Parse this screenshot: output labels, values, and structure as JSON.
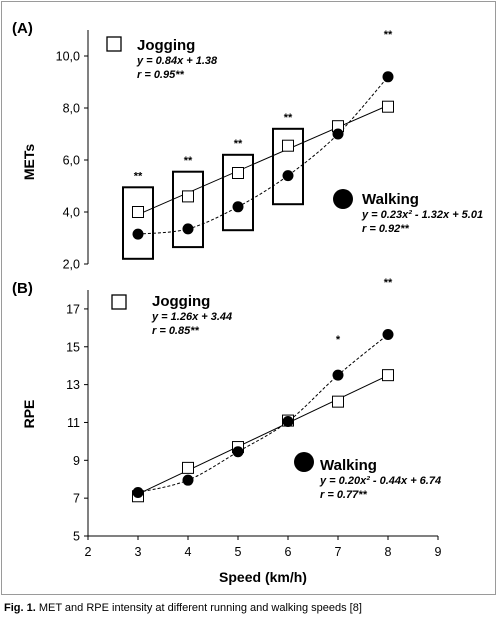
{
  "chart_data": [
    {
      "type": "scatter",
      "panel_label": "(A)",
      "ylabel": "METs",
      "xlim": [
        2,
        9
      ],
      "ylim": [
        2,
        11
      ],
      "y_ticks": [
        "2,0",
        "4,0",
        "6,0",
        "8,0",
        "10,0"
      ],
      "y_tick_values": [
        2,
        4,
        6,
        8,
        10
      ],
      "series": [
        {
          "name": "Jogging",
          "marker": "open-square",
          "fit": "solid-line",
          "x": [
            3,
            4,
            5,
            6,
            7,
            8
          ],
          "y": [
            4.0,
            4.6,
            5.5,
            6.55,
            7.3,
            8.05
          ]
        },
        {
          "name": "Walking",
          "marker": "filled-circle",
          "fit": "dashed-curve",
          "x": [
            3,
            4,
            5,
            6,
            7,
            8
          ],
          "y": [
            3.15,
            3.35,
            4.2,
            5.4,
            7.0,
            9.2
          ]
        }
      ],
      "boxes": [
        {
          "x": 3,
          "y_low": 2.2,
          "y_high": 4.95
        },
        {
          "x": 4,
          "y_low": 2.65,
          "y_high": 5.55
        },
        {
          "x": 5,
          "y_low": 3.3,
          "y_high": 6.2
        },
        {
          "x": 6,
          "y_low": 4.3,
          "y_high": 7.2
        }
      ],
      "significance": [
        {
          "x": 3,
          "y": 5.25,
          "text": "**"
        },
        {
          "x": 4,
          "y": 5.85,
          "text": "**"
        },
        {
          "x": 5,
          "y": 6.5,
          "text": "**"
        },
        {
          "x": 6,
          "y": 7.5,
          "text": "**"
        },
        {
          "x": 8,
          "y": 10.7,
          "text": "**"
        }
      ],
      "legend": {
        "jogging": {
          "name": "Jogging",
          "equation": "y = 0.84x + 1.38",
          "r": "r = 0.95**"
        },
        "walking": {
          "name": "Walking",
          "equation": "y = 0.23x² - 1.32x + 5.01",
          "r": "r = 0.92**"
        }
      }
    },
    {
      "type": "scatter",
      "panel_label": "(B)",
      "ylabel": "RPE",
      "xlabel": "Speed (km/h)",
      "xlim": [
        2,
        9
      ],
      "ylim": [
        5,
        18
      ],
      "x_ticks": [
        "2",
        "3",
        "4",
        "5",
        "6",
        "7",
        "8",
        "9"
      ],
      "x_tick_values": [
        2,
        3,
        4,
        5,
        6,
        7,
        8,
        9
      ],
      "y_ticks": [
        "5",
        "7",
        "9",
        "11",
        "13",
        "15",
        "17"
      ],
      "y_tick_values": [
        5,
        7,
        9,
        11,
        13,
        15,
        17
      ],
      "series": [
        {
          "name": "Jogging",
          "marker": "open-square",
          "fit": "solid-line",
          "x": [
            3,
            4,
            5,
            6,
            7,
            8
          ],
          "y": [
            7.1,
            8.6,
            9.7,
            11.1,
            12.1,
            13.5
          ]
        },
        {
          "name": "Walking",
          "marker": "filled-circle",
          "fit": "dashed-curve",
          "x": [
            3,
            4,
            5,
            6,
            7,
            8
          ],
          "y": [
            7.3,
            7.95,
            9.45,
            11.05,
            13.5,
            15.65
          ]
        }
      ],
      "significance": [
        {
          "x": 7,
          "y": 15.2,
          "text": "*"
        },
        {
          "x": 8,
          "y": 18.2,
          "text": "**"
        }
      ],
      "legend": {
        "jogging": {
          "name": "Jogging",
          "equation": "y = 1.26x + 3.44",
          "r": "r = 0.85**"
        },
        "walking": {
          "name": "Walking",
          "equation": "y = 0.20x² - 0.44x + 6.74",
          "r": "r = 0.77**"
        }
      }
    }
  ],
  "caption": {
    "label": "Fig. 1.",
    "text": "MET and RPE intensity at different running and walking speeds [8]"
  }
}
